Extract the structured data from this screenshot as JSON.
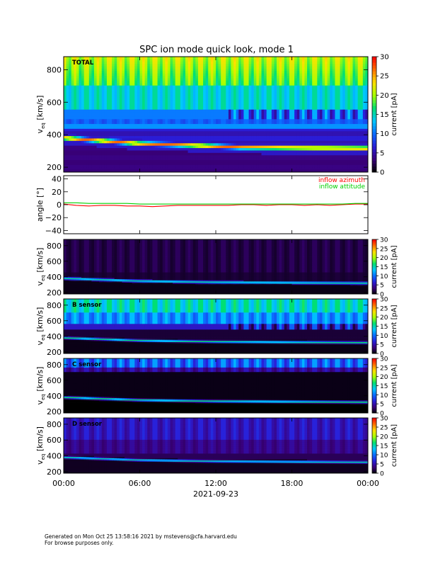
{
  "title": "SPC ion mode quick look, mode 1",
  "footer": {
    "line1": "Generated on Mon Oct 25 13:58:16 2021 by mstevens@cfa.harvard.edu",
    "line2": "For browse purposes only."
  },
  "colors": {
    "colormap": [
      "#000000",
      "#3a007a",
      "#2a1ed8",
      "#0a6cff",
      "#00c8ff",
      "#00e070",
      "#a8ff00",
      "#ffe000",
      "#ff7000",
      "#ff0000"
    ],
    "azimuth": "#ff0000",
    "attitude": "#00d000"
  },
  "chart_data": [
    {
      "type": "heatmap",
      "panel_label": "TOTAL",
      "ylabel": "v_eq [km/s]",
      "ylabel_main": "v",
      "ylabel_sub": "eq",
      "ylabel_units": "[km/s]",
      "ylim": [
        170,
        880
      ],
      "yticks": [
        200,
        400,
        600,
        800
      ],
      "yticklabels": [
        "200",
        "400",
        "600",
        "800"
      ],
      "colorbar": {
        "label": "current [pA]",
        "range": [
          0,
          30
        ],
        "ticks": [
          0,
          5,
          10,
          15,
          20,
          25,
          30
        ],
        "ticklabels": [
          "0",
          "5",
          "10",
          "15",
          "20",
          "25",
          "30"
        ]
      },
      "x_hours": [
        0,
        24
      ],
      "features": {
        "solar_wind_speed_kms": [
          [
            0,
            380
          ],
          [
            6,
            345
          ],
          [
            10,
            335
          ],
          [
            14,
            322
          ],
          [
            20,
            318
          ],
          [
            24,
            316
          ]
        ],
        "pattern": "total"
      }
    },
    {
      "type": "line",
      "ylabel": "angle [°]",
      "ylim": [
        -45,
        45
      ],
      "yticks": [
        -40,
        -20,
        0,
        20,
        40
      ],
      "yticklabels": [
        "−40",
        "−20",
        "0",
        "20",
        "40"
      ],
      "series": [
        {
          "name": "inflow azimuth",
          "color": "#ff0000",
          "hours": [
            0,
            1,
            2,
            3,
            4,
            5,
            6,
            7,
            8,
            9,
            10,
            11,
            12,
            13,
            14,
            15,
            16,
            17,
            18,
            19,
            20,
            21,
            22,
            23,
            24
          ],
          "values": [
            1,
            -1,
            -2,
            -1,
            -1,
            -2,
            -2,
            -3,
            -2,
            -1,
            -1,
            -1,
            -1,
            -1,
            0,
            0,
            -1,
            0,
            0,
            -1,
            0,
            -1,
            0,
            1,
            1
          ]
        },
        {
          "name": "inflow attitude",
          "color": "#00d000",
          "hours": [
            0,
            1,
            2,
            3,
            4,
            5,
            6,
            7,
            8,
            9,
            10,
            11,
            12,
            13,
            14,
            15,
            16,
            17,
            18,
            19,
            20,
            21,
            22,
            23,
            24
          ],
          "values": [
            3,
            3,
            2,
            2,
            2,
            2,
            1,
            1,
            1,
            1,
            1,
            1,
            1,
            1,
            1,
            1,
            1,
            1,
            1,
            1,
            1,
            1,
            1,
            2,
            2
          ]
        }
      ]
    },
    {
      "type": "heatmap",
      "panel_label": "",
      "ylabel": "v_eq [km/s]",
      "ylabel_main": "v",
      "ylabel_sub": "eq",
      "ylabel_units": "[km/s]",
      "ylim": [
        180,
        880
      ],
      "yticks": [
        200,
        400,
        600,
        800
      ],
      "yticklabels": [
        "200",
        "400",
        "600",
        "800"
      ],
      "colorbar": {
        "label": "current [pA]",
        "range": [
          0,
          30
        ],
        "ticks": [
          0,
          5,
          10,
          15,
          20,
          25,
          30
        ],
        "ticklabels": [
          "0",
          "5",
          "10",
          "15",
          "20",
          "25",
          "30"
        ]
      },
      "x_hours": [
        0,
        24
      ],
      "features": {
        "solar_wind_speed_kms": [
          [
            0,
            380
          ],
          [
            6,
            345
          ],
          [
            12,
            330
          ],
          [
            24,
            318
          ]
        ],
        "pattern": "dim"
      }
    },
    {
      "type": "heatmap",
      "panel_label": "B sensor",
      "ylabel": "v_eq [km/s]",
      "ylabel_main": "v",
      "ylabel_sub": "eq",
      "ylabel_units": "[km/s]",
      "ylim": [
        180,
        880
      ],
      "yticks": [
        200,
        400,
        600,
        800
      ],
      "yticklabels": [
        "200",
        "400",
        "600",
        "800"
      ],
      "colorbar": {
        "label": "current [pA]",
        "range": [
          0,
          30
        ],
        "ticks": [
          0,
          5,
          10,
          15,
          20,
          25,
          30
        ],
        "ticklabels": [
          "0",
          "5",
          "10",
          "15",
          "20",
          "25",
          "30"
        ]
      },
      "x_hours": [
        0,
        24
      ],
      "features": {
        "solar_wind_speed_kms": [
          [
            0,
            380
          ],
          [
            6,
            345
          ],
          [
            12,
            330
          ],
          [
            24,
            318
          ]
        ],
        "pattern": "bsensor"
      }
    },
    {
      "type": "heatmap",
      "panel_label": "C sensor",
      "ylabel": "v_eq [km/s]",
      "ylabel_main": "v",
      "ylabel_sub": "eq",
      "ylabel_units": "[km/s]",
      "ylim": [
        180,
        880
      ],
      "yticks": [
        200,
        400,
        600,
        800
      ],
      "yticklabels": [
        "200",
        "400",
        "600",
        "800"
      ],
      "colorbar": {
        "label": "current [pA]",
        "range": [
          0,
          30
        ],
        "ticks": [
          0,
          5,
          10,
          15,
          20,
          25,
          30
        ],
        "ticklabels": [
          "0",
          "5",
          "10",
          "15",
          "20",
          "25",
          "30"
        ]
      },
      "x_hours": [
        0,
        24
      ],
      "features": {
        "solar_wind_speed_kms": [
          [
            0,
            380
          ],
          [
            6,
            345
          ],
          [
            12,
            330
          ],
          [
            24,
            318
          ]
        ],
        "pattern": "csensor"
      }
    },
    {
      "type": "heatmap",
      "panel_label": "D sensor",
      "ylabel": "v_eq [km/s]",
      "ylabel_main": "v",
      "ylabel_sub": "eq",
      "ylabel_units": "[km/s]",
      "ylim": [
        180,
        880
      ],
      "yticks": [
        200,
        400,
        600,
        800
      ],
      "yticklabels": [
        "200",
        "400",
        "600",
        "800"
      ],
      "colorbar": {
        "label": "current [pA]",
        "range": [
          0,
          30
        ],
        "ticks": [
          0,
          5,
          10,
          15,
          20,
          25,
          30
        ],
        "ticklabels": [
          "0",
          "5",
          "10",
          "15",
          "20",
          "25",
          "30"
        ]
      },
      "x_hours": [
        0,
        24
      ],
      "features": {
        "solar_wind_speed_kms": [
          [
            0,
            380
          ],
          [
            6,
            345
          ],
          [
            12,
            330
          ],
          [
            24,
            318
          ]
        ],
        "pattern": "dsensor"
      }
    }
  ],
  "xaxis": {
    "ticks_hours": [
      0,
      6,
      12,
      18,
      24
    ],
    "ticklabels": [
      "00:00",
      "06:00",
      "12:00",
      "18:00",
      "00:00"
    ],
    "date_label": "2021-09-23"
  }
}
